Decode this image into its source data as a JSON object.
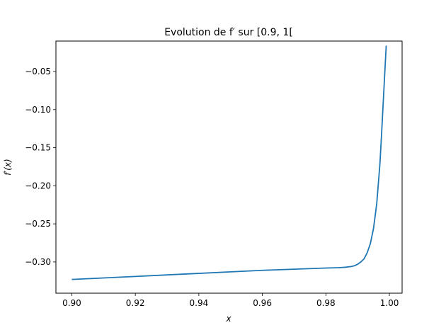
{
  "chart_data": {
    "type": "line",
    "title": "Evolution de f′ sur [0.9, 1[",
    "xlabel": "x",
    "ylabel": "f′(x)",
    "xlim": [
      0.895,
      1.004
    ],
    "ylim": [
      -0.341,
      -0.01
    ],
    "grid": false,
    "x_ticks": [
      0.9,
      0.92,
      0.94,
      0.96,
      0.98,
      1.0
    ],
    "x_tick_labels": [
      "0.90",
      "0.92",
      "0.94",
      "0.96",
      "0.98",
      "1.00"
    ],
    "y_ticks": [
      -0.05,
      -0.1,
      -0.15,
      -0.2,
      -0.25,
      -0.3
    ],
    "y_tick_labels": [
      "−0.05",
      "−0.10",
      "−0.15",
      "−0.20",
      "−0.25",
      "−0.30"
    ],
    "series": [
      {
        "color": "#1f77b4",
        "x": [
          0.9,
          0.91,
          0.92,
          0.93,
          0.94,
          0.95,
          0.96,
          0.97,
          0.98,
          0.984,
          0.986,
          0.988,
          0.989,
          0.99,
          0.991,
          0.992,
          0.993,
          0.994,
          0.995,
          0.996,
          0.997,
          0.9975,
          0.998,
          0.9985,
          0.999
        ],
        "y": [
          -0.323,
          -0.321,
          -0.319,
          -0.317,
          -0.315,
          -0.313,
          -0.311,
          -0.3095,
          -0.308,
          -0.3075,
          -0.307,
          -0.306,
          -0.305,
          -0.303,
          -0.3,
          -0.296,
          -0.288,
          -0.276,
          -0.256,
          -0.224,
          -0.172,
          -0.135,
          -0.095,
          -0.055,
          -0.016
        ]
      }
    ]
  }
}
